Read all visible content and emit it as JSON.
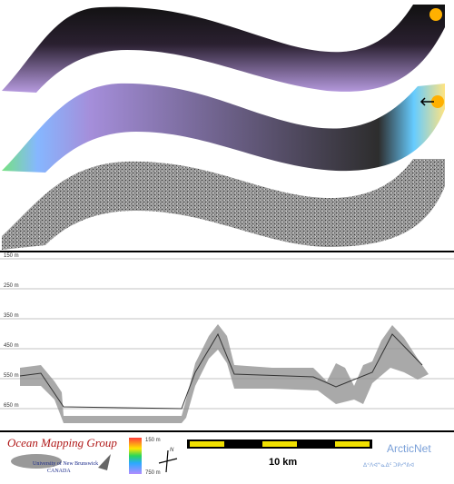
{
  "depth_axis": {
    "labels": [
      "150 m",
      "250 m",
      "350 m",
      "450 m",
      "550 m",
      "650 m"
    ]
  },
  "footer": {
    "logo_title": "Ocean Mapping Group",
    "logo_line1": "University of New Brunswick",
    "logo_line2": "CANADA",
    "colorbar_top": "150 m",
    "colorbar_bottom": "750 m",
    "north": "N",
    "scale_label": "10 km",
    "partner": "ArcticNet",
    "partner_inuktitut": "ᐃᑉᐱᐊᓐᓇᐃᑦ ᑐᑭᓯᕐᕕᐊ"
  }
}
